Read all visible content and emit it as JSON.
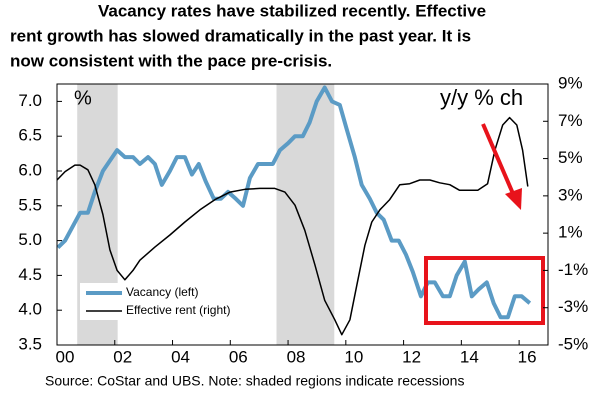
{
  "chart_data": {
    "type": "line",
    "title_lines": [
      "Vacancy rates have stabilized recently. Effective",
      "rent growth has slowed dramatically in the past year. It is",
      "now consistent with the pace pre-crisis."
    ],
    "left_axis_label": "%",
    "right_axis_label": "y/y % ch",
    "source": "Source:  CoStar and UBS. Note: shaded regions indicate recessions",
    "legend": "lower left",
    "recession_color": "#d9d9d9",
    "recessions": [
      [
        2000.7,
        2002.1
      ],
      [
        2007.6,
        2009.6
      ]
    ],
    "xlim": [
      2000,
      2017
    ],
    "xticks": [
      {
        "value": 2000,
        "label": "00"
      },
      {
        "value": 2002,
        "label": "02"
      },
      {
        "value": 2004,
        "label": "04"
      },
      {
        "value": 2006,
        "label": "06"
      },
      {
        "value": 2008,
        "label": "08"
      },
      {
        "value": 2010,
        "label": "10"
      },
      {
        "value": 2012,
        "label": "12"
      },
      {
        "value": 2014,
        "label": "14"
      },
      {
        "value": 2016,
        "label": "16"
      }
    ],
    "ylim": [
      3.5,
      7.25
    ],
    "yticks": [
      3.5,
      {
        "value": 4,
        "label": "4.0"
      },
      4.5,
      {
        "value": 5,
        "label": "5.0"
      },
      5.5,
      {
        "value": 6,
        "label": "6.0"
      },
      6.5,
      {
        "value": 7,
        "label": "7.0"
      }
    ],
    "y2lim": [
      -5,
      9
    ],
    "y2ticks": [
      {
        "value": -5,
        "label": "-5%"
      },
      {
        "value": -3,
        "label": "-3%"
      },
      {
        "value": -1,
        "label": "-1%"
      },
      {
        "value": 1,
        "label": "1%"
      },
      {
        "value": 3,
        "label": "3%"
      },
      {
        "value": 5,
        "label": "5%"
      },
      {
        "value": 7,
        "label": "7%"
      },
      {
        "value": 9,
        "label": "9%"
      }
    ],
    "series": [
      {
        "name": "Vacancy (left)",
        "color": "#5b9bc5",
        "axis": "y",
        "x": [
          2000.03,
          2000.28,
          2000.8,
          2001.07,
          2001.31,
          2001.59,
          2002.08,
          2002.35,
          2002.63,
          2002.87,
          2003.15,
          2003.39,
          2003.63,
          2003.91,
          2004.15,
          2004.43,
          2004.67,
          2004.91,
          2005.15,
          2005.43,
          2005.67,
          2005.92,
          2006.19,
          2006.44,
          2006.68,
          2006.96,
          2007.2,
          2007.47,
          2007.72,
          2008.0,
          2008.24,
          2008.51,
          2008.75,
          2008.99,
          2009.27,
          2009.52,
          2009.79,
          2010.03,
          2010.31,
          2010.55,
          2010.83,
          2011.07,
          2011.31,
          2011.59,
          2011.83,
          2012.08,
          2012.32,
          2012.6,
          2012.84,
          2013.08,
          2013.36,
          2013.6,
          2013.84,
          2014.12,
          2014.36,
          2014.6,
          2014.88,
          2015.12,
          2015.36,
          2015.61,
          2015.85,
          2016.09,
          2016.37
        ],
        "values": [
          4.9,
          5.0,
          5.4,
          5.4,
          5.7,
          6.0,
          6.3,
          6.2,
          6.2,
          6.1,
          6.2,
          6.1,
          5.8,
          6.0,
          6.2,
          6.2,
          5.95,
          6.1,
          5.85,
          5.6,
          5.6,
          5.7,
          5.6,
          5.5,
          5.9,
          6.1,
          6.1,
          6.1,
          6.3,
          6.4,
          6.5,
          6.5,
          6.7,
          7.0,
          7.2,
          7.0,
          6.95,
          6.6,
          6.2,
          5.8,
          5.6,
          5.4,
          5.3,
          5.0,
          5.0,
          4.8,
          4.55,
          4.2,
          4.4,
          4.4,
          4.2,
          4.2,
          4.5,
          4.7,
          4.2,
          4.3,
          4.4,
          4.1,
          3.9,
          3.9,
          4.2,
          4.2,
          4.1
        ]
      },
      {
        "name": "Effective rent (right)",
        "color": "#000000",
        "axis": "y2",
        "x": [
          2000.0,
          2000.28,
          2000.62,
          2000.8,
          2001.07,
          2001.31,
          2001.59,
          2001.83,
          2002.08,
          2002.35,
          2002.63,
          2002.87,
          2003.39,
          2003.91,
          2004.43,
          2004.95,
          2005.47,
          2005.99,
          2006.51,
          2007.02,
          2007.54,
          2007.89,
          2008.24,
          2008.58,
          2008.93,
          2009.27,
          2009.62,
          2009.86,
          2010.14,
          2010.38,
          2010.66,
          2010.9,
          2011.18,
          2011.52,
          2011.87,
          2012.21,
          2012.56,
          2012.91,
          2013.25,
          2013.6,
          2013.94,
          2014.29,
          2014.57,
          2014.91,
          2015.16,
          2015.43,
          2015.67,
          2015.92,
          2016.12,
          2016.3
        ],
        "values": [
          3.85,
          4.3,
          4.65,
          4.65,
          4.4,
          3.6,
          2.0,
          0.1,
          -1.0,
          -1.5,
          -1.0,
          -0.45,
          0.25,
          0.9,
          1.6,
          2.25,
          2.8,
          3.2,
          3.35,
          3.4,
          3.4,
          3.2,
          2.5,
          1.15,
          -0.7,
          -2.6,
          -3.65,
          -4.45,
          -3.65,
          -1.8,
          0.35,
          1.6,
          2.25,
          2.8,
          3.6,
          3.65,
          3.85,
          3.85,
          3.7,
          3.6,
          3.3,
          3.3,
          3.3,
          3.65,
          5.45,
          6.8,
          7.2,
          6.8,
          5.45,
          3.5
        ]
      }
    ]
  }
}
